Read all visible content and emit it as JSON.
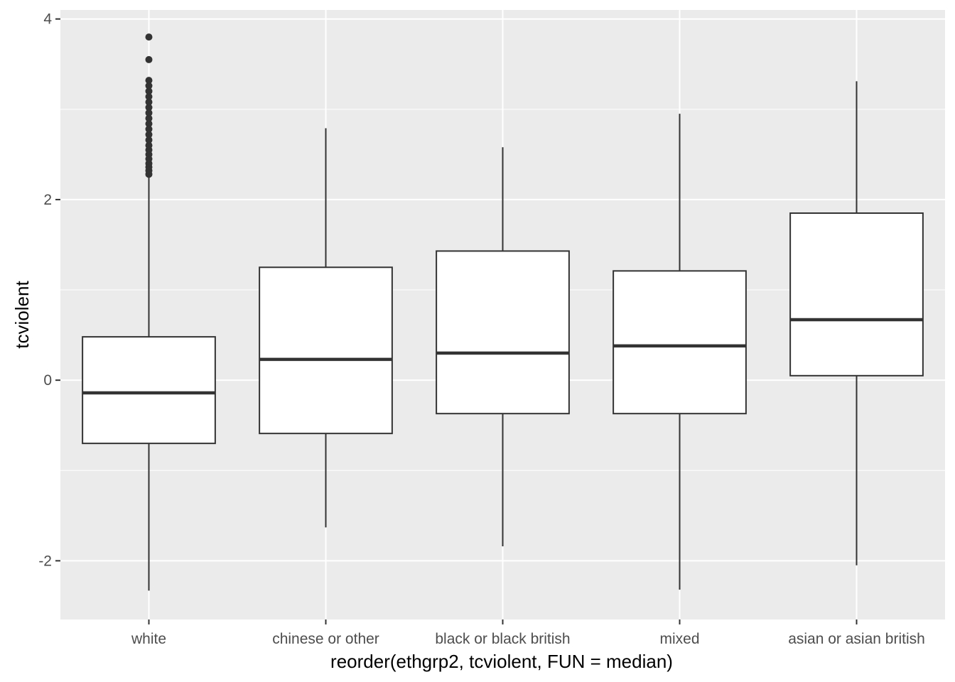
{
  "chart_data": {
    "type": "boxplot",
    "title": "",
    "xlabel": "reorder(ethgrp2, tcviolent, FUN = median)",
    "ylabel": "tcviolent",
    "ylim": [
      -2.65,
      4.1
    ],
    "y_ticks": [
      -2,
      0,
      2,
      4
    ],
    "y_tick_labels": [
      "-2",
      "0",
      "2",
      "4"
    ],
    "categories": [
      "white",
      "chinese or other",
      "black or black british",
      "mixed",
      "asian or asian british"
    ],
    "boxes": [
      {
        "category": "white",
        "whisker_low": -2.33,
        "q1": -0.7,
        "median": -0.14,
        "q3": 0.48,
        "whisker_high": 2.27,
        "outliers": [
          2.28,
          2.32,
          2.36,
          2.4,
          2.45,
          2.5,
          2.55,
          2.6,
          2.66,
          2.72,
          2.78,
          2.84,
          2.9,
          2.96,
          3.02,
          3.08,
          3.14,
          3.2,
          3.26,
          3.32,
          3.55,
          3.8
        ]
      },
      {
        "category": "chinese or other",
        "whisker_low": -1.63,
        "q1": -0.59,
        "median": 0.23,
        "q3": 1.25,
        "whisker_high": 2.79,
        "outliers": []
      },
      {
        "category": "black or black british",
        "whisker_low": -1.84,
        "q1": -0.37,
        "median": 0.3,
        "q3": 1.43,
        "whisker_high": 2.58,
        "outliers": []
      },
      {
        "category": "mixed",
        "whisker_low": -2.32,
        "q1": -0.37,
        "median": 0.38,
        "q3": 1.21,
        "whisker_high": 2.95,
        "outliers": []
      },
      {
        "category": "asian or asian british",
        "whisker_low": -2.05,
        "q1": 0.05,
        "median": 0.67,
        "q3": 1.85,
        "whisker_high": 3.31,
        "outliers": []
      }
    ],
    "grid": true,
    "colors": {
      "panel_background": "#ebebeb",
      "grid_line": "#ffffff",
      "box_fill": "#ffffff",
      "box_line": "#333333",
      "tick_text": "#4d4d4d",
      "tick_mark": "#333333"
    }
  }
}
